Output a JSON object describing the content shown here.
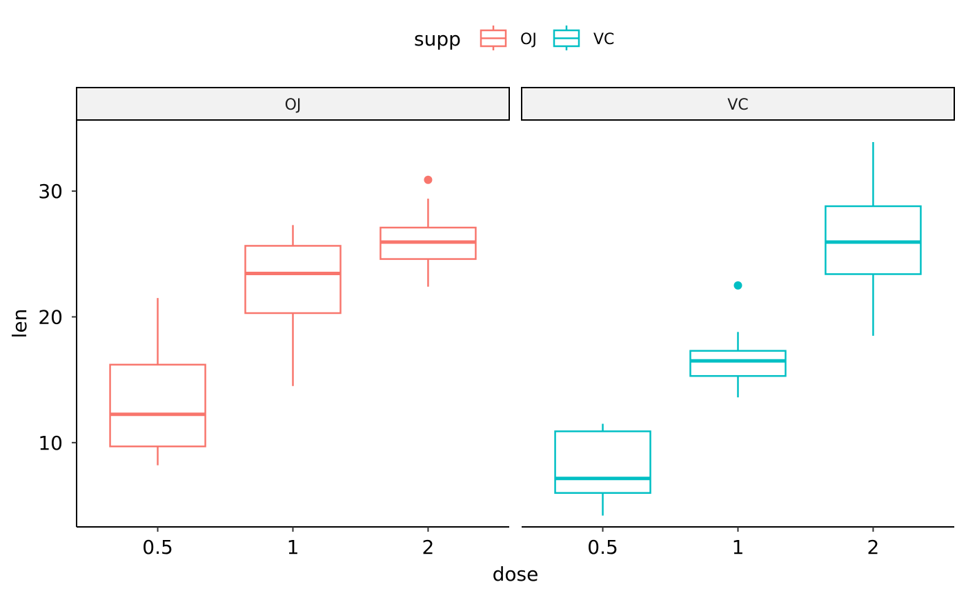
{
  "chart_data": {
    "type": "boxplot",
    "title": "",
    "xlabel": "dose",
    "ylabel": "len",
    "categories": [
      "0.5",
      "1",
      "2"
    ],
    "ylim": [
      3.3,
      35.6
    ],
    "yticks": [
      10,
      20,
      30
    ],
    "ytick_labels": [
      "10",
      "20",
      "30"
    ],
    "grid": false,
    "legend": {
      "title": "supp",
      "position": "top",
      "entries": [
        {
          "label": "OJ",
          "color": "#F8766D"
        },
        {
          "label": "VC",
          "color": "#00BFC4"
        }
      ]
    },
    "facets": [
      {
        "label": "OJ",
        "color": "#F8766D",
        "boxes": [
          {
            "category": "0.5",
            "whisker_low": 8.2,
            "q1": 9.7,
            "median": 12.25,
            "q3": 16.2,
            "whisker_high": 21.5,
            "outliers": []
          },
          {
            "category": "1",
            "whisker_low": 14.5,
            "q1": 20.3,
            "median": 23.45,
            "q3": 25.65,
            "whisker_high": 27.3,
            "outliers": []
          },
          {
            "category": "2",
            "whisker_low": 22.4,
            "q1": 24.6,
            "median": 25.95,
            "q3": 27.1,
            "whisker_high": 29.4,
            "outliers": [
              30.9
            ]
          }
        ]
      },
      {
        "label": "VC",
        "color": "#00BFC4",
        "boxes": [
          {
            "category": "0.5",
            "whisker_low": 4.2,
            "q1": 6.0,
            "median": 7.15,
            "q3": 10.9,
            "whisker_high": 11.5,
            "outliers": []
          },
          {
            "category": "1",
            "whisker_low": 13.6,
            "q1": 15.3,
            "median": 16.5,
            "q3": 17.3,
            "whisker_high": 18.8,
            "outliers": [
              22.5
            ]
          },
          {
            "category": "2",
            "whisker_low": 18.5,
            "q1": 23.4,
            "median": 25.95,
            "q3": 28.8,
            "whisker_high": 33.9,
            "outliers": []
          }
        ]
      }
    ]
  }
}
